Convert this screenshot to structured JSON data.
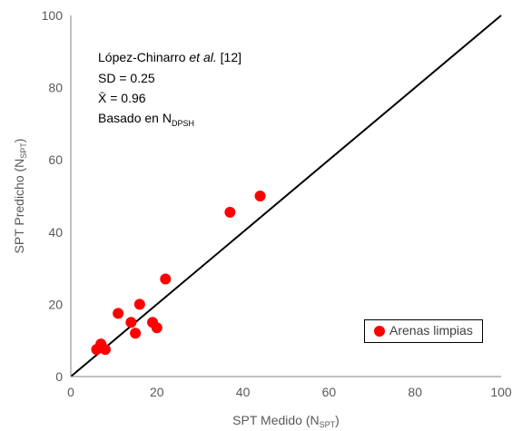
{
  "chart_data": {
    "type": "scatter",
    "xlabel": "SPT Medido (N",
    "xlabel_sub": "SPT",
    "xlabel_end": ")",
    "ylabel": "SPT Predicho (N",
    "ylabel_sub": "SPT",
    "ylabel_end": ")",
    "xlim": [
      0,
      100
    ],
    "ylim": [
      0,
      100
    ],
    "xticks": [
      0,
      20,
      40,
      60,
      80,
      100
    ],
    "yticks": [
      0,
      20,
      40,
      60,
      80,
      100
    ],
    "grid": false,
    "legend_placement": "bottom-right",
    "reference_line": {
      "x": [
        0,
        100
      ],
      "y": [
        0,
        100
      ]
    },
    "series": [
      {
        "name": "Arenas limpias",
        "color": "#ff0000",
        "points": [
          {
            "x": 6,
            "y": 7.5
          },
          {
            "x": 7,
            "y": 9
          },
          {
            "x": 8,
            "y": 7.5
          },
          {
            "x": 11,
            "y": 17.5
          },
          {
            "x": 14,
            "y": 15
          },
          {
            "x": 15,
            "y": 12
          },
          {
            "x": 16,
            "y": 20
          },
          {
            "x": 19,
            "y": 15
          },
          {
            "x": 20,
            "y": 13.5
          },
          {
            "x": 22,
            "y": 27
          },
          {
            "x": 37,
            "y": 45.5
          },
          {
            "x": 44,
            "y": 50
          }
        ]
      }
    ]
  },
  "annotation": {
    "line1_a": "López-Chinarro ",
    "line1_b": "et al.",
    "line1_c": " [12]",
    "line2": "SD = 0.25",
    "line3": "X̄ = 0.96",
    "line4": "Basado en N",
    "line4_sub": "DPSH"
  }
}
